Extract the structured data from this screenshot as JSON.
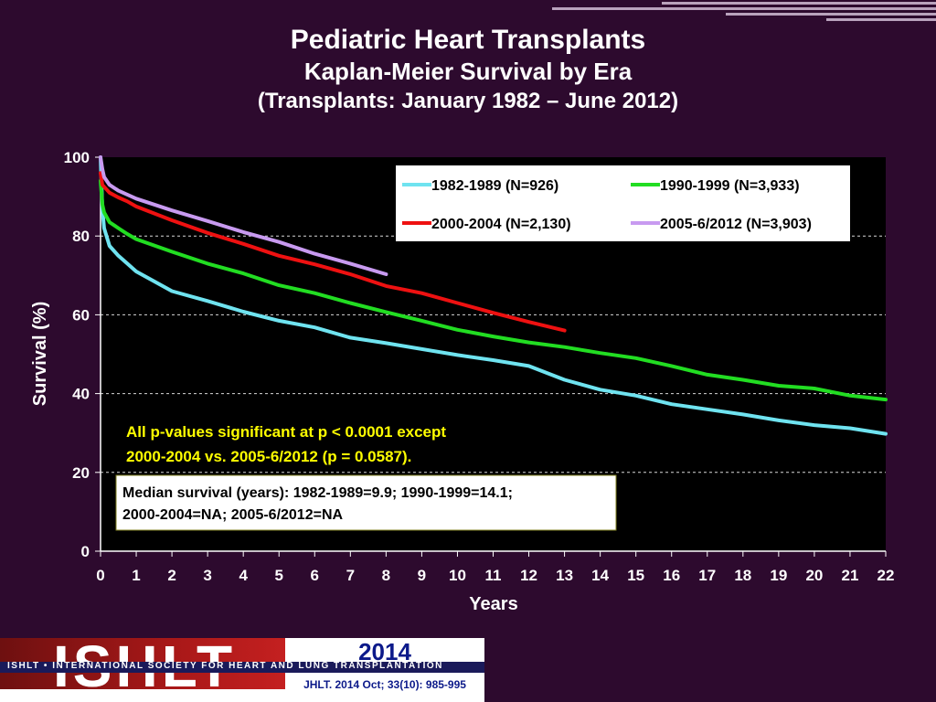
{
  "slide": {
    "title": "Pediatric Heart Transplants",
    "subtitle": "Kaplan-Meier Survival by Era",
    "subtitle2": "(Transplants: January 1982 – June 2012)"
  },
  "footer": {
    "logo_text": "ISHLT",
    "org_name": "ISHLT • INTERNATIONAL SOCIETY FOR HEART AND LUNG TRANSPLANTATION",
    "year": "2014",
    "citation": "JHLT. 2014 Oct; 33(10): 985-995"
  },
  "colors": {
    "background": "#2d0a2e",
    "plot_background": "#000000"
  },
  "chart_data": {
    "type": "line",
    "xlabel": "Years",
    "ylabel": "Survival (%)",
    "xlim": [
      0,
      22
    ],
    "ylim": [
      0,
      100
    ],
    "xticks": [
      "0",
      "1",
      "2",
      "3",
      "4",
      "5",
      "6",
      "7",
      "8",
      "9",
      "10",
      "11",
      "12",
      "13",
      "14",
      "15",
      "16",
      "17",
      "18",
      "19",
      "20",
      "21",
      "22"
    ],
    "yticks": [
      "0",
      "20",
      "40",
      "60",
      "80",
      "100"
    ],
    "grid": "horizontal dashed",
    "legend_position": "top-right",
    "series": [
      {
        "name": "1982-1989 (N=926)",
        "color": "#6fe3f0",
        "points": [
          [
            0,
            100
          ],
          [
            0.05,
            87
          ],
          [
            0.1,
            82
          ],
          [
            0.25,
            77.5
          ],
          [
            0.5,
            75
          ],
          [
            0.75,
            73
          ],
          [
            1,
            71
          ],
          [
            1.5,
            68.5
          ],
          [
            2,
            66
          ],
          [
            3,
            63.5
          ],
          [
            4,
            60.8
          ],
          [
            5,
            58.5
          ],
          [
            6,
            56.8
          ],
          [
            7,
            54.2
          ],
          [
            8,
            52.8
          ],
          [
            9,
            51.3
          ],
          [
            10,
            49.8
          ],
          [
            11,
            48.5
          ],
          [
            12,
            47
          ],
          [
            13,
            43.5
          ],
          [
            14,
            41
          ],
          [
            15,
            39.5
          ],
          [
            16,
            37.3
          ],
          [
            17,
            36
          ],
          [
            18,
            34.7
          ],
          [
            19,
            33.2
          ],
          [
            20,
            32
          ],
          [
            21,
            31.2
          ],
          [
            22,
            29.8
          ]
        ]
      },
      {
        "name": "1990-1999 (N=3,933)",
        "color": "#22dd22",
        "points": [
          [
            0,
            94
          ],
          [
            0.05,
            88
          ],
          [
            0.1,
            86
          ],
          [
            0.25,
            83.5
          ],
          [
            0.5,
            82
          ],
          [
            0.75,
            80.5
          ],
          [
            1,
            79.2
          ],
          [
            2,
            76
          ],
          [
            3,
            73
          ],
          [
            4,
            70.5
          ],
          [
            5,
            67.5
          ],
          [
            6,
            65.5
          ],
          [
            7,
            63
          ],
          [
            8,
            60.7
          ],
          [
            9,
            58.5
          ],
          [
            10,
            56.2
          ],
          [
            11,
            54.5
          ],
          [
            12,
            53
          ],
          [
            13,
            51.8
          ],
          [
            14,
            50.3
          ],
          [
            15,
            49
          ],
          [
            16,
            47
          ],
          [
            17,
            44.8
          ],
          [
            18,
            43.5
          ],
          [
            19,
            42
          ],
          [
            20,
            41.3
          ],
          [
            21,
            39.5
          ],
          [
            22,
            38.5
          ]
        ]
      },
      {
        "name": "2000-2004 (N=2,130)",
        "color": "#ee1111",
        "points": [
          [
            0,
            96
          ],
          [
            0.05,
            93
          ],
          [
            0.1,
            92.5
          ],
          [
            0.25,
            91
          ],
          [
            0.5,
            89.8
          ],
          [
            0.75,
            88.8
          ],
          [
            1,
            87.5
          ],
          [
            2,
            84
          ],
          [
            3,
            80.8
          ],
          [
            4,
            78
          ],
          [
            5,
            75
          ],
          [
            6,
            72.8
          ],
          [
            7,
            70.3
          ],
          [
            8,
            67.3
          ],
          [
            9,
            65.5
          ],
          [
            10,
            63
          ],
          [
            11,
            60.5
          ],
          [
            12,
            58.2
          ],
          [
            13,
            56
          ]
        ]
      },
      {
        "name": "2005-6/2012 (N=3,903)",
        "color": "#c89af0",
        "points": [
          [
            0,
            100
          ],
          [
            0.05,
            97
          ],
          [
            0.1,
            95
          ],
          [
            0.25,
            93
          ],
          [
            0.5,
            91.5
          ],
          [
            0.75,
            90.5
          ],
          [
            1,
            89.5
          ],
          [
            2,
            86.5
          ],
          [
            3,
            83.8
          ],
          [
            4,
            81
          ],
          [
            5,
            78.5
          ],
          [
            6,
            75.5
          ],
          [
            7,
            73
          ],
          [
            8,
            70.3
          ]
        ]
      }
    ],
    "annotations": [
      "All p-values significant at p < 0.0001 except",
      "2000-2004 vs. 2005-6/2012 (p = 0.0587).",
      "Median survival (years): 1982-1989=9.9; 1990-1999=14.1;",
      "2000-2004=NA; 2005-6/2012=NA"
    ]
  }
}
